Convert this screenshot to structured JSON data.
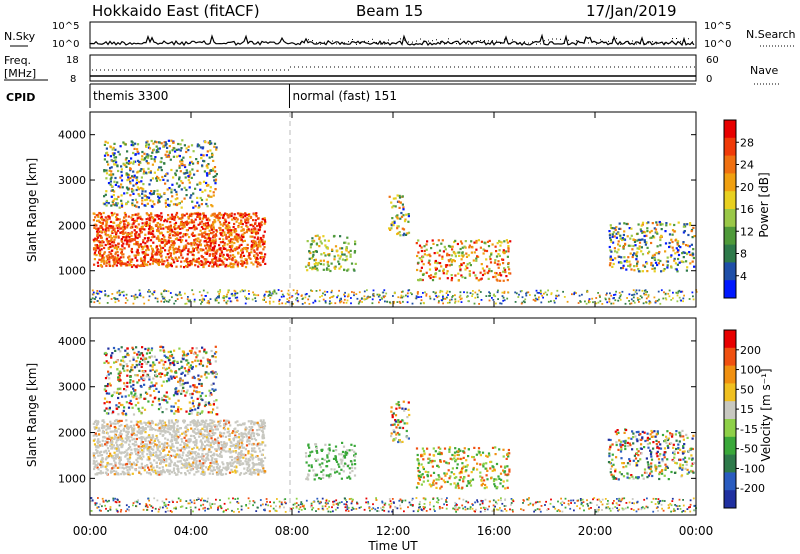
{
  "header": {
    "radar": "Hokkaido East (fitACF)",
    "beam": "Beam 15",
    "date": "17/Jan/2019"
  },
  "top_panels": {
    "nsky_label": "N.Sky",
    "nsearch_label": "N.Search",
    "count_ticks": [
      "10^5",
      "10^0"
    ],
    "freq_label_1": "Freq.",
    "freq_label_2": "[MHz]",
    "freq_ticks": [
      "18",
      "8"
    ],
    "nave_label": "Nave",
    "nave_ticks": [
      "60",
      "0"
    ],
    "cpid_label": "CPID",
    "cpid_segments": [
      {
        "name": "themis 3300",
        "start_hour": 0,
        "end_hour": 7.9
      },
      {
        "name": "normal (fast) 151",
        "start_hour": 7.9,
        "end_hour": 24
      }
    ]
  },
  "x_axis": {
    "label": "Time UT",
    "range_hours": [
      0,
      24
    ],
    "tick_labels": [
      "00:00",
      "04:00",
      "08:00",
      "12:00",
      "16:00",
      "20:00",
      "00:00"
    ]
  },
  "power_panel": {
    "ylabel": "Slant Range [km]",
    "yticks": [
      "4000",
      "3000",
      "2000",
      "1000"
    ],
    "colorbar_label": "Power [dB]",
    "colorbar_ticks": [
      "28",
      "24",
      "20",
      "16",
      "12",
      "8",
      "4"
    ],
    "colors": [
      "#0018ff",
      "#1f4fa8",
      "#2e7a4a",
      "#4f9a3a",
      "#9ac848",
      "#e8d020",
      "#f0a010",
      "#f07010",
      "#f03a08",
      "#e80000"
    ]
  },
  "velocity_panel": {
    "ylabel": "Slant Range [km]",
    "yticks": [
      "4000",
      "3000",
      "2000",
      "1000"
    ],
    "colorbar_label": "Velocity [m s⁻¹]",
    "colorbar_ticks": [
      "200",
      "100",
      "50",
      "15",
      "-15",
      "-50",
      "-100",
      "-200"
    ],
    "colors": [
      "#2030a0",
      "#2a5cc0",
      "#2e7a4a",
      "#3aa83a",
      "#8ed048",
      "#c8c8c0",
      "#f0c020",
      "#f09010",
      "#f05010",
      "#e80000"
    ]
  },
  "chart_data": {
    "type": "heatmap",
    "x_range_hours": [
      0,
      24
    ],
    "y_range_km": [
      200,
      4500
    ],
    "power_regions": [
      {
        "t0": 0.1,
        "t1": 6.9,
        "r0": 1100,
        "r1": 2300,
        "level": "high"
      },
      {
        "t0": 0.5,
        "t1": 5.0,
        "r0": 2400,
        "r1": 3900,
        "level": "mixed"
      },
      {
        "t0": 8.5,
        "t1": 10.5,
        "r0": 1000,
        "r1": 1800,
        "level": "mid"
      },
      {
        "t0": 11.8,
        "t1": 12.6,
        "r0": 1800,
        "r1": 2700,
        "level": "mixed"
      },
      {
        "t0": 12.9,
        "t1": 16.6,
        "r0": 800,
        "r1": 1700,
        "level": "mid-high"
      },
      {
        "t0": 20.5,
        "t1": 23.9,
        "r0": 1000,
        "r1": 2100,
        "level": "mixed"
      }
    ]
  }
}
